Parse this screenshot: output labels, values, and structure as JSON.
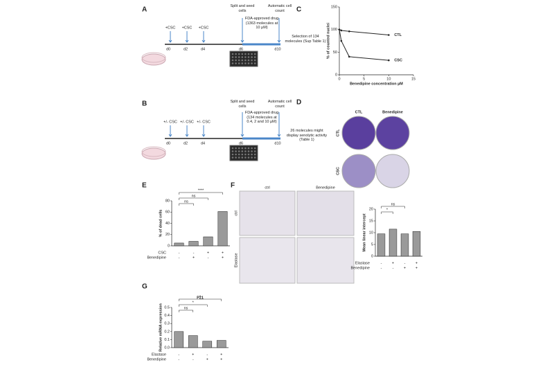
{
  "figure": {
    "A": {
      "label": "A",
      "treatments": [
        "+CSC",
        "+CSC",
        "+CSC"
      ],
      "days": [
        "d0",
        "d2",
        "d4",
        "d6",
        "d10"
      ],
      "seed_note": "Split and seed cells",
      "drug_note": "FDA-approved drug (1363 molecules at 10 µM)",
      "count_note": "Automatic cell count",
      "outcome": "Selection of 134 molecules (Sup Table 1)"
    },
    "B": {
      "label": "B",
      "treatments": [
        "+/- CSC",
        "+/- CSC",
        "+/- CSC"
      ],
      "days": [
        "d0",
        "d2",
        "d4",
        "d6",
        "d10"
      ],
      "seed_note": "Split and seed cells",
      "drug_note": "FDA-approved drug (134 molecules at 0.4, 2 and 10 µM)",
      "count_note": "Automatic cell count",
      "outcome": "26 molecules might display senolytic activity (Table 1)"
    },
    "C": {
      "label": "C",
      "chart": {
        "type": "line",
        "x_label": "Benedipine concentration µM",
        "y_label": "% of counted nuclei",
        "xlim": [
          0,
          15
        ],
        "xticks": [
          0,
          5,
          10,
          15
        ],
        "ylim": [
          0,
          150
        ],
        "yticks": [
          0,
          50,
          100,
          150
        ],
        "series": [
          {
            "name": "CTL",
            "color": "#222222",
            "x": [
              0,
              0.4,
              2,
              10
            ],
            "values": [
              100,
              98,
              96,
              88
            ]
          },
          {
            "name": "CSC",
            "color": "#222222",
            "x": [
              0,
              0.4,
              2,
              10
            ],
            "values": [
              100,
              75,
              40,
              32
            ]
          }
        ]
      }
    },
    "D": {
      "label": "D",
      "columns": [
        "CTL",
        "Benedipine"
      ],
      "rows": [
        "CTL",
        "CSC"
      ]
    },
    "E": {
      "label": "E",
      "chart": {
        "type": "bar",
        "y_label": "% of dead cells",
        "ylim": [
          0,
          80
        ],
        "yticks": [
          0,
          20,
          40,
          60,
          80
        ],
        "values": [
          5,
          8,
          16,
          61
        ],
        "color": "#9a9a9a",
        "conditions": [
          {
            "name": "CSC",
            "signs": [
              "-",
              "-",
              "+",
              "+"
            ]
          },
          {
            "name": "Benedipine",
            "signs": [
              "-",
              "+",
              "-",
              "+"
            ]
          }
        ],
        "significance": [
          "ns",
          "ns",
          "****"
        ]
      }
    },
    "F": {
      "label": "F",
      "columns": [
        "ctrl",
        "Benedipine"
      ],
      "rows": [
        "ctrl",
        "Elastase"
      ],
      "chart": {
        "type": "bar",
        "y_label": "Mean linear intercept",
        "ylim": [
          0,
          20
        ],
        "yticks": [
          0,
          5,
          10,
          15,
          20
        ],
        "values": [
          9.5,
          11.5,
          9.5,
          10.5
        ],
        "color": "#9a9a9a",
        "conditions": [
          {
            "name": "Elastase",
            "signs": [
              "-",
              "+",
              "-",
              "+"
            ]
          },
          {
            "name": "Benedipine",
            "signs": [
              "-",
              "-",
              "+",
              "+"
            ]
          }
        ],
        "significance": [
          "*",
          "ns"
        ]
      }
    },
    "G": {
      "label": "G",
      "chart": {
        "type": "bar",
        "title": "P21",
        "y_label": "Relative mRNA expression",
        "ylim": [
          0,
          0.5
        ],
        "yticks": [
          {
            "value": 0,
            "label": "0.0"
          },
          0.1,
          0.2,
          0.3,
          0.4,
          0.5
        ],
        "values": [
          0.2,
          0.15,
          0.08,
          0.09
        ],
        "color": "#9a9a9a",
        "conditions": [
          {
            "name": "Elastase",
            "signs": [
              "-",
              "+",
              "-",
              "+"
            ]
          },
          {
            "name": "Benedipine",
            "signs": [
              "-",
              "-",
              "+",
              "+"
            ]
          }
        ],
        "significance": [
          "ns",
          "*",
          "*"
        ]
      }
    }
  }
}
